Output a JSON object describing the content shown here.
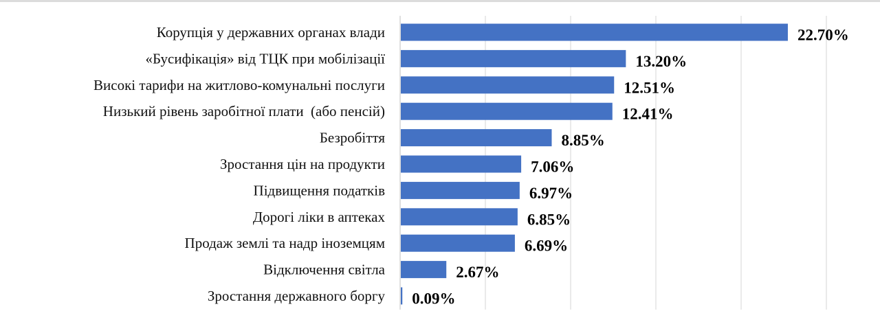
{
  "chart_data": {
    "type": "bar",
    "orientation": "horizontal",
    "title": "",
    "xlabel": "",
    "ylabel": "",
    "categories": [
      "Корупція у державних органах влади",
      "«Бусифікація» від ТЦК при мобілізації",
      "Високі тарифи на житлово-комунальні послуги",
      "Низький рівень заробітної плати  (або пенсій)",
      "Безробіття",
      "Зростання цін на продукти",
      "Підвищення податків",
      "Дорогі ліки в аптеках",
      "Продаж землі та надр іноземцям",
      "Відключення світла",
      "Зростання державного боргу"
    ],
    "values": [
      22.7,
      13.2,
      12.51,
      12.41,
      8.85,
      7.06,
      6.97,
      6.85,
      6.69,
      2.67,
      0.09
    ],
    "value_labels": [
      "22.70%",
      "13.20%",
      "12.51%",
      "12.41%",
      "8.85%",
      "7.06%",
      "6.97%",
      "6.85%",
      "6.69%",
      "2.67%",
      "0.09%"
    ],
    "xlim": [
      0,
      25
    ],
    "grid_step": 5,
    "grid": true,
    "legend": "none",
    "bar_color": "#4472c4"
  }
}
